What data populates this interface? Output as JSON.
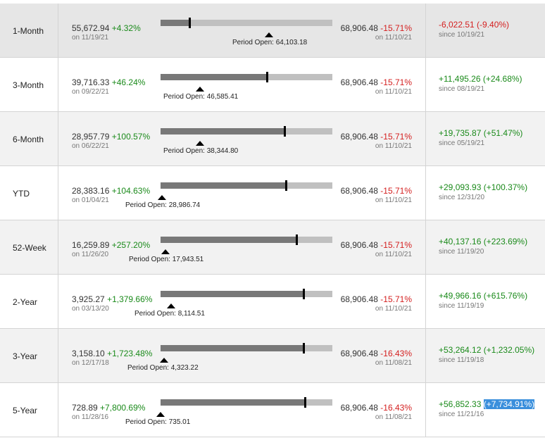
{
  "rows": [
    {
      "period": "1-Month",
      "low": "55,672.94",
      "low_pct": "+4.32%",
      "low_date": "on 11/19/21",
      "open_label": "Period Open: 64,103.18",
      "high": "68,906.48",
      "high_pct": "-15.71%",
      "high_date": "on 11/10/21",
      "change": "-6,022.51 (-9.40%)",
      "change_sign": "neg",
      "since": "since 10/19/21",
      "position_fraction": 0.17,
      "open_fraction": 0.63
    },
    {
      "period": "3-Month",
      "low": "39,716.33",
      "low_pct": "+46.24%",
      "low_date": "on 09/22/21",
      "open_label": "Period Open: 46,585.41",
      "high": "68,906.48",
      "high_pct": "-15.71%",
      "high_date": "on 11/10/21",
      "change": "+11,495.26 (+24.68%)",
      "change_sign": "pos",
      "since": "since 08/19/21",
      "position_fraction": 0.62,
      "open_fraction": 0.23
    },
    {
      "period": "6-Month",
      "low": "28,957.79",
      "low_pct": "+100.57%",
      "low_date": "on 06/22/21",
      "open_label": "Period Open: 38,344.80",
      "high": "68,906.48",
      "high_pct": "-15.71%",
      "high_date": "on 11/10/21",
      "change": "+19,735.87 (+51.47%)",
      "change_sign": "pos",
      "since": "since 05/19/21",
      "position_fraction": 0.72,
      "open_fraction": 0.23
    },
    {
      "period": "YTD",
      "low": "28,383.16",
      "low_pct": "+104.63%",
      "low_date": "on 01/04/21",
      "open_label": "Period Open: 28,986.74",
      "high": "68,906.48",
      "high_pct": "-15.71%",
      "high_date": "on 11/10/21",
      "change": "+29,093.93 (+100.37%)",
      "change_sign": "pos",
      "since": "since 12/31/20",
      "position_fraction": 0.73,
      "open_fraction": 0.01
    },
    {
      "period": "52-Week",
      "low": "16,259.89",
      "low_pct": "+257.20%",
      "low_date": "on 11/26/20",
      "open_label": "Period Open: 17,943.51",
      "high": "68,906.48",
      "high_pct": "-15.71%",
      "high_date": "on 11/10/21",
      "change": "+40,137.16 (+223.69%)",
      "change_sign": "pos",
      "since": "since 11/19/20",
      "position_fraction": 0.79,
      "open_fraction": 0.03
    },
    {
      "period": "2-Year",
      "low": "3,925.27",
      "low_pct": "+1,379.66%",
      "low_date": "on 03/13/20",
      "open_label": "Period Open: 8,114.51",
      "high": "68,906.48",
      "high_pct": "-15.71%",
      "high_date": "on 11/10/21",
      "change": "+49,966.16 (+615.76%)",
      "change_sign": "pos",
      "since": "since 11/19/19",
      "position_fraction": 0.83,
      "open_fraction": 0.06
    },
    {
      "period": "3-Year",
      "low": "3,158.10",
      "low_pct": "+1,723.48%",
      "low_date": "on 12/17/18",
      "open_label": "Period Open: 4,323.22",
      "high": "68,906.48",
      "high_pct": "-16.43%",
      "high_date": "on 11/08/21",
      "change": "+53,264.12 (+1,232.05%)",
      "change_sign": "pos",
      "since": "since 11/19/18",
      "position_fraction": 0.83,
      "open_fraction": 0.02
    },
    {
      "period": "5-Year",
      "low": "728.89",
      "low_pct": "+7,800.69%",
      "low_date": "on 11/28/16",
      "open_label": "Period Open: 735.01",
      "high": "68,906.48",
      "high_pct": "-16.43%",
      "high_date": "on 11/08/21",
      "change_main": "+56,852.33",
      "change_pct": "(+7,734.91%)",
      "change_sign": "pos",
      "since": "since 11/21/16",
      "position_fraction": 0.84,
      "open_fraction": 0.0
    }
  ]
}
